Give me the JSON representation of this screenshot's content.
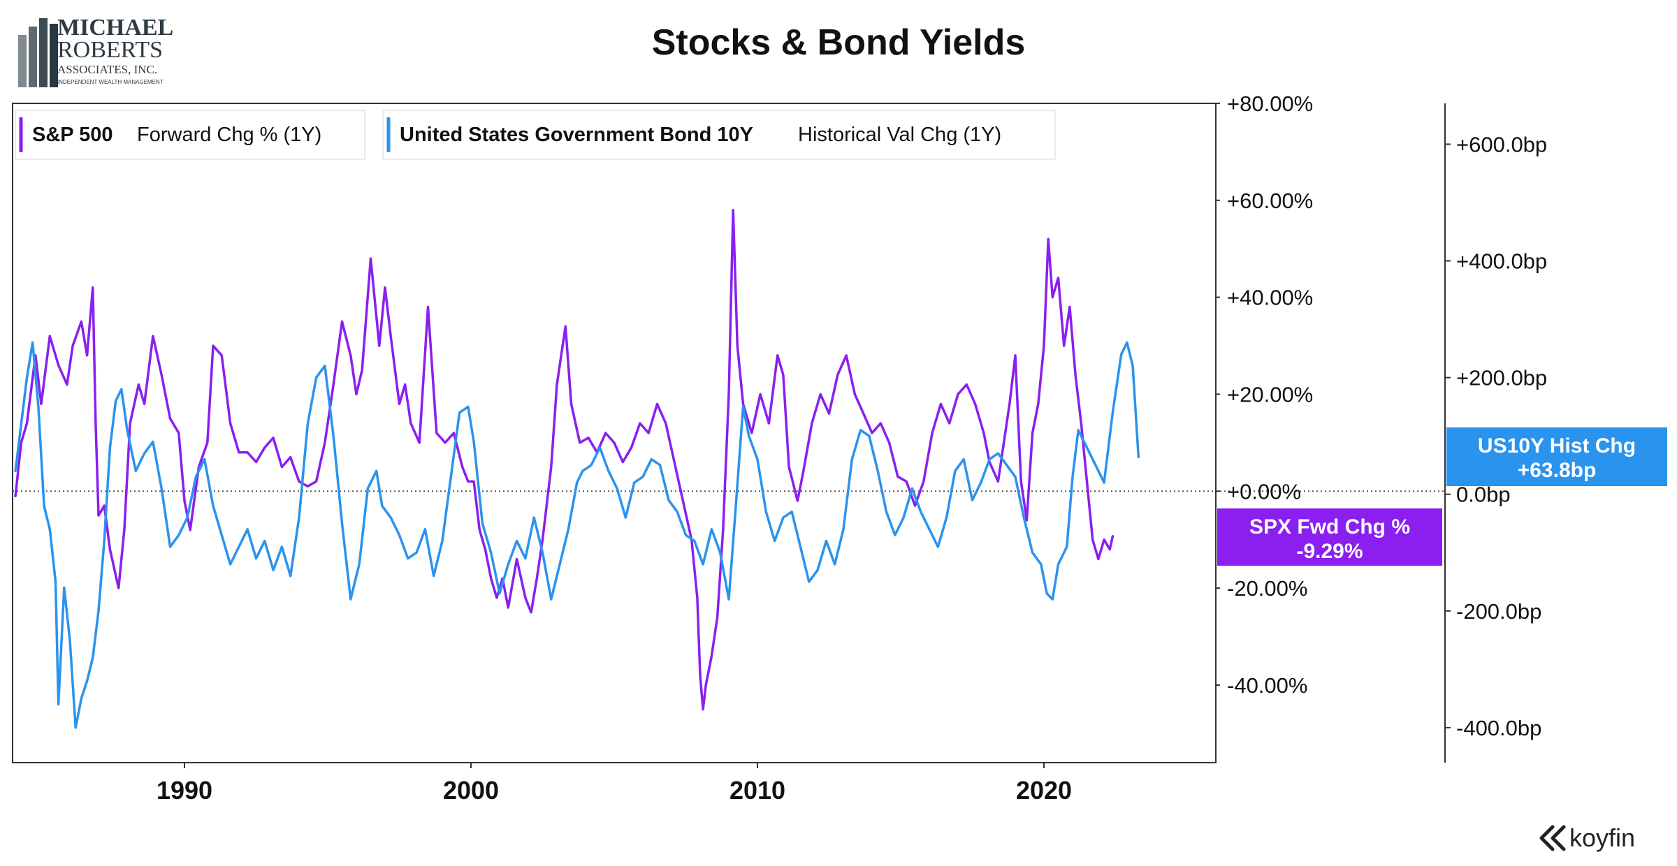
{
  "logo": {
    "line1": "MICHAEL",
    "line2": "ROBERTS",
    "line3": "ASSOCIATES, INC.",
    "line4": "INDEPENDENT WEALTH MANAGEMENT"
  },
  "brand": {
    "name": "koyfin"
  },
  "chart_data": {
    "type": "line",
    "title": "Stocks & Bond Yields",
    "legend_placement": "top-left",
    "grid": false,
    "x_range": [
      1984,
      2026
    ],
    "x_ticks": [
      1990,
      2000,
      2010,
      2020
    ],
    "x_tick_labels": [
      "1990",
      "2000",
      "2010",
      "2020"
    ],
    "y_left": {
      "range": [
        -56,
        80
      ],
      "ticks": [
        80,
        60,
        40,
        20,
        0,
        -20,
        -40
      ],
      "tick_labels": [
        "+80.00%",
        "+60.00%",
        "+40.00%",
        "+20.00%",
        "+0.00%",
        "-20.00%",
        "-40.00%"
      ]
    },
    "y_right": {
      "range": [
        -460,
        670
      ],
      "ticks": [
        600,
        400,
        200,
        0,
        -200,
        -400
      ],
      "tick_labels": [
        "+600.0bp",
        "+400.0bp",
        "+200.0bp",
        "0.0bp",
        "-200.0bp",
        "-400.0bp"
      ]
    },
    "zero_line": "dotted",
    "series": [
      {
        "name": "S&P 500",
        "metric": "Forward Chg % (1Y)",
        "axis": "left",
        "color": "#8a1ff0",
        "end_tag_line1": "SPX Fwd Chg %",
        "end_tag_line2": "-9.29%",
        "points": [
          [
            1984.1,
            -1
          ],
          [
            1984.3,
            10
          ],
          [
            1984.5,
            14
          ],
          [
            1984.8,
            28
          ],
          [
            1985.0,
            18
          ],
          [
            1985.3,
            32
          ],
          [
            1985.6,
            26
          ],
          [
            1985.9,
            22
          ],
          [
            1986.1,
            30
          ],
          [
            1986.4,
            35
          ],
          [
            1986.6,
            28
          ],
          [
            1986.8,
            42
          ],
          [
            1986.9,
            14
          ],
          [
            1987.0,
            -5
          ],
          [
            1987.2,
            -3
          ],
          [
            1987.4,
            -12
          ],
          [
            1987.7,
            -20
          ],
          [
            1987.9,
            -8
          ],
          [
            1988.1,
            14
          ],
          [
            1988.4,
            22
          ],
          [
            1988.6,
            18
          ],
          [
            1988.9,
            32
          ],
          [
            1989.2,
            24
          ],
          [
            1989.5,
            15
          ],
          [
            1989.8,
            12
          ],
          [
            1990.0,
            -2
          ],
          [
            1990.2,
            -8
          ],
          [
            1990.5,
            5
          ],
          [
            1990.8,
            10
          ],
          [
            1991.0,
            30
          ],
          [
            1991.3,
            28
          ],
          [
            1991.6,
            14
          ],
          [
            1991.9,
            8
          ],
          [
            1992.2,
            8
          ],
          [
            1992.5,
            6
          ],
          [
            1992.8,
            9
          ],
          [
            1993.1,
            11
          ],
          [
            1993.4,
            5
          ],
          [
            1993.7,
            7
          ],
          [
            1994.0,
            2
          ],
          [
            1994.3,
            1
          ],
          [
            1994.6,
            2
          ],
          [
            1994.9,
            10
          ],
          [
            1995.2,
            22
          ],
          [
            1995.5,
            35
          ],
          [
            1995.8,
            28
          ],
          [
            1996.0,
            20
          ],
          [
            1996.2,
            25
          ],
          [
            1996.5,
            48
          ],
          [
            1996.8,
            30
          ],
          [
            1997.0,
            42
          ],
          [
            1997.2,
            32
          ],
          [
            1997.5,
            18
          ],
          [
            1997.7,
            22
          ],
          [
            1997.9,
            14
          ],
          [
            1998.2,
            10
          ],
          [
            1998.5,
            38
          ],
          [
            1998.8,
            12
          ],
          [
            1999.1,
            10
          ],
          [
            1999.4,
            12
          ],
          [
            1999.7,
            5
          ],
          [
            1999.9,
            2
          ],
          [
            2000.1,
            2
          ],
          [
            2000.3,
            -8
          ],
          [
            2000.5,
            -12
          ],
          [
            2000.7,
            -18
          ],
          [
            2000.9,
            -22
          ],
          [
            2001.1,
            -18
          ],
          [
            2001.3,
            -24
          ],
          [
            2001.6,
            -14
          ],
          [
            2001.9,
            -22
          ],
          [
            2002.1,
            -25
          ],
          [
            2002.3,
            -18
          ],
          [
            2002.5,
            -10
          ],
          [
            2002.8,
            5
          ],
          [
            2003.0,
            22
          ],
          [
            2003.3,
            34
          ],
          [
            2003.5,
            18
          ],
          [
            2003.8,
            10
          ],
          [
            2004.1,
            11
          ],
          [
            2004.4,
            8
          ],
          [
            2004.7,
            12
          ],
          [
            2005.0,
            10
          ],
          [
            2005.3,
            6
          ],
          [
            2005.6,
            9
          ],
          [
            2005.9,
            14
          ],
          [
            2006.2,
            12
          ],
          [
            2006.5,
            18
          ],
          [
            2006.8,
            14
          ],
          [
            2007.1,
            6
          ],
          [
            2007.4,
            -2
          ],
          [
            2007.7,
            -10
          ],
          [
            2007.9,
            -22
          ],
          [
            2008.0,
            -38
          ],
          [
            2008.1,
            -45
          ],
          [
            2008.2,
            -40
          ],
          [
            2008.4,
            -34
          ],
          [
            2008.6,
            -26
          ],
          [
            2008.8,
            -8
          ],
          [
            2009.0,
            20
          ],
          [
            2009.15,
            58
          ],
          [
            2009.3,
            30
          ],
          [
            2009.5,
            18
          ],
          [
            2009.8,
            12
          ],
          [
            2010.1,
            20
          ],
          [
            2010.4,
            14
          ],
          [
            2010.7,
            28
          ],
          [
            2010.9,
            24
          ],
          [
            2011.1,
            5
          ],
          [
            2011.4,
            -2
          ],
          [
            2011.6,
            4
          ],
          [
            2011.9,
            14
          ],
          [
            2012.2,
            20
          ],
          [
            2012.5,
            16
          ],
          [
            2012.8,
            24
          ],
          [
            2013.1,
            28
          ],
          [
            2013.4,
            20
          ],
          [
            2013.7,
            16
          ],
          [
            2014.0,
            12
          ],
          [
            2014.3,
            14
          ],
          [
            2014.6,
            10
          ],
          [
            2014.9,
            3
          ],
          [
            2015.2,
            2
          ],
          [
            2015.5,
            -3
          ],
          [
            2015.8,
            2
          ],
          [
            2016.1,
            12
          ],
          [
            2016.4,
            18
          ],
          [
            2016.7,
            14
          ],
          [
            2017.0,
            20
          ],
          [
            2017.3,
            22
          ],
          [
            2017.6,
            18
          ],
          [
            2017.9,
            12
          ],
          [
            2018.1,
            6
          ],
          [
            2018.4,
            2
          ],
          [
            2018.6,
            10
          ],
          [
            2018.8,
            18
          ],
          [
            2019.0,
            28
          ],
          [
            2019.2,
            2
          ],
          [
            2019.4,
            -6
          ],
          [
            2019.6,
            12
          ],
          [
            2019.8,
            18
          ],
          [
            2020.0,
            30
          ],
          [
            2020.15,
            52
          ],
          [
            2020.3,
            40
          ],
          [
            2020.5,
            44
          ],
          [
            2020.7,
            30
          ],
          [
            2020.9,
            38
          ],
          [
            2021.1,
            24
          ],
          [
            2021.3,
            14
          ],
          [
            2021.5,
            2
          ],
          [
            2021.7,
            -10
          ],
          [
            2021.9,
            -14
          ],
          [
            2022.1,
            -10
          ],
          [
            2022.3,
            -12
          ],
          [
            2022.4,
            -9.29
          ]
        ]
      },
      {
        "name": "United States Government Bond 10Y",
        "metric": "Historical Val Chg (1Y)",
        "axis": "right",
        "color": "#2a93ee",
        "end_tag_line1": "US10Y Hist Chg",
        "end_tag_line2": "+63.8bp",
        "points": [
          [
            1984.1,
            40
          ],
          [
            1984.3,
            120
          ],
          [
            1984.5,
            200
          ],
          [
            1984.7,
            260
          ],
          [
            1984.9,
            150
          ],
          [
            1985.1,
            -20
          ],
          [
            1985.3,
            -60
          ],
          [
            1985.5,
            -150
          ],
          [
            1985.6,
            -360
          ],
          [
            1985.8,
            -160
          ],
          [
            1986.0,
            -250
          ],
          [
            1986.2,
            -400
          ],
          [
            1986.4,
            -350
          ],
          [
            1986.6,
            -320
          ],
          [
            1986.8,
            -280
          ],
          [
            1987.0,
            -200
          ],
          [
            1987.2,
            -80
          ],
          [
            1987.4,
            80
          ],
          [
            1987.6,
            160
          ],
          [
            1987.8,
            180
          ],
          [
            1988.0,
            110
          ],
          [
            1988.3,
            40
          ],
          [
            1988.6,
            70
          ],
          [
            1988.9,
            90
          ],
          [
            1989.2,
            10
          ],
          [
            1989.5,
            -90
          ],
          [
            1989.8,
            -70
          ],
          [
            1990.1,
            -40
          ],
          [
            1990.4,
            30
          ],
          [
            1990.7,
            60
          ],
          [
            1991.0,
            -20
          ],
          [
            1991.3,
            -70
          ],
          [
            1991.6,
            -120
          ],
          [
            1991.9,
            -90
          ],
          [
            1992.2,
            -60
          ],
          [
            1992.5,
            -110
          ],
          [
            1992.8,
            -80
          ],
          [
            1993.1,
            -130
          ],
          [
            1993.4,
            -90
          ],
          [
            1993.7,
            -140
          ],
          [
            1994.0,
            -40
          ],
          [
            1994.3,
            120
          ],
          [
            1994.6,
            200
          ],
          [
            1994.9,
            220
          ],
          [
            1995.2,
            100
          ],
          [
            1995.5,
            -50
          ],
          [
            1995.8,
            -180
          ],
          [
            1996.1,
            -120
          ],
          [
            1996.4,
            10
          ],
          [
            1996.7,
            40
          ],
          [
            1996.9,
            -20
          ],
          [
            1997.2,
            -40
          ],
          [
            1997.5,
            -70
          ],
          [
            1997.8,
            -110
          ],
          [
            1998.1,
            -100
          ],
          [
            1998.4,
            -60
          ],
          [
            1998.7,
            -140
          ],
          [
            1999.0,
            -80
          ],
          [
            1999.3,
            30
          ],
          [
            1999.6,
            140
          ],
          [
            1999.9,
            150
          ],
          [
            2000.1,
            90
          ],
          [
            2000.4,
            -50
          ],
          [
            2000.7,
            -100
          ],
          [
            2001.0,
            -170
          ],
          [
            2001.3,
            -120
          ],
          [
            2001.6,
            -80
          ],
          [
            2001.9,
            -110
          ],
          [
            2002.2,
            -40
          ],
          [
            2002.5,
            -100
          ],
          [
            2002.8,
            -180
          ],
          [
            2003.1,
            -120
          ],
          [
            2003.4,
            -60
          ],
          [
            2003.7,
            20
          ],
          [
            2003.9,
            40
          ],
          [
            2004.2,
            50
          ],
          [
            2004.5,
            80
          ],
          [
            2004.8,
            40
          ],
          [
            2005.1,
            10
          ],
          [
            2005.4,
            -40
          ],
          [
            2005.7,
            20
          ],
          [
            2006.0,
            30
          ],
          [
            2006.3,
            60
          ],
          [
            2006.6,
            50
          ],
          [
            2006.9,
            -10
          ],
          [
            2007.2,
            -30
          ],
          [
            2007.5,
            -70
          ],
          [
            2007.8,
            -80
          ],
          [
            2008.1,
            -120
          ],
          [
            2008.4,
            -60
          ],
          [
            2008.7,
            -100
          ],
          [
            2009.0,
            -180
          ],
          [
            2009.2,
            -50
          ],
          [
            2009.5,
            150
          ],
          [
            2009.7,
            100
          ],
          [
            2010.0,
            60
          ],
          [
            2010.3,
            -30
          ],
          [
            2010.6,
            -80
          ],
          [
            2010.9,
            -40
          ],
          [
            2011.2,
            -30
          ],
          [
            2011.5,
            -90
          ],
          [
            2011.8,
            -150
          ],
          [
            2012.1,
            -130
          ],
          [
            2012.4,
            -80
          ],
          [
            2012.7,
            -120
          ],
          [
            2013.0,
            -60
          ],
          [
            2013.3,
            60
          ],
          [
            2013.6,
            110
          ],
          [
            2013.9,
            100
          ],
          [
            2014.2,
            40
          ],
          [
            2014.5,
            -30
          ],
          [
            2014.8,
            -70
          ],
          [
            2015.1,
            -40
          ],
          [
            2015.4,
            10
          ],
          [
            2015.7,
            -30
          ],
          [
            2016.0,
            -60
          ],
          [
            2016.3,
            -90
          ],
          [
            2016.6,
            -40
          ],
          [
            2016.9,
            40
          ],
          [
            2017.2,
            60
          ],
          [
            2017.5,
            -10
          ],
          [
            2017.8,
            20
          ],
          [
            2018.1,
            60
          ],
          [
            2018.4,
            70
          ],
          [
            2018.7,
            50
          ],
          [
            2019.0,
            30
          ],
          [
            2019.3,
            -40
          ],
          [
            2019.6,
            -100
          ],
          [
            2019.9,
            -120
          ],
          [
            2020.1,
            -170
          ],
          [
            2020.3,
            -180
          ],
          [
            2020.5,
            -120
          ],
          [
            2020.8,
            -90
          ],
          [
            2021.0,
            30
          ],
          [
            2021.2,
            110
          ],
          [
            2021.5,
            80
          ],
          [
            2021.8,
            50
          ],
          [
            2022.1,
            20
          ],
          [
            2022.4,
            140
          ],
          [
            2022.7,
            240
          ],
          [
            2022.9,
            260
          ],
          [
            2023.1,
            220
          ],
          [
            2023.3,
            63.8
          ]
        ]
      }
    ]
  }
}
